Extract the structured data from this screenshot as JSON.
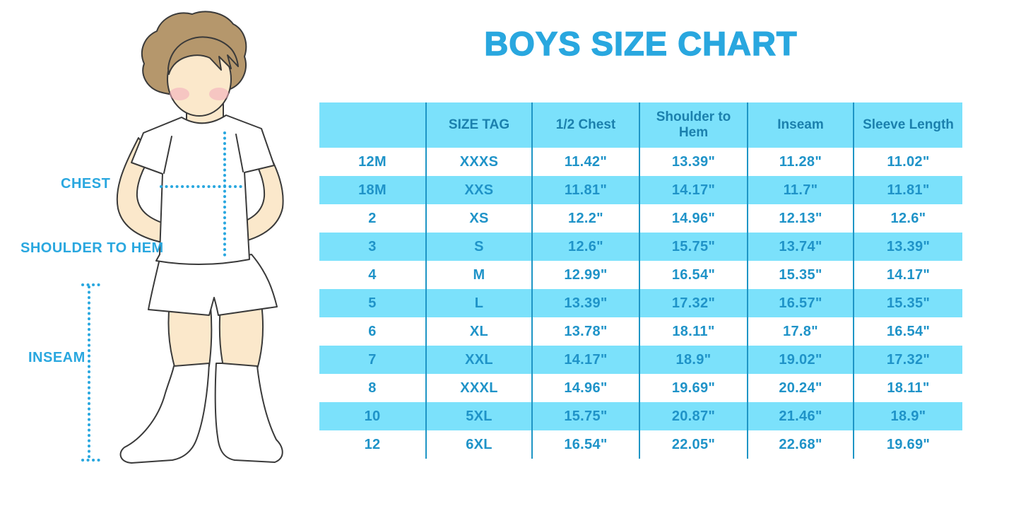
{
  "page_title": "BOYS SIZE CHART",
  "figure": {
    "description": "boy wearing white t-shirt, shorts and knee socks with measurement guides",
    "labels": {
      "chest": "CHEST",
      "shoulder_to_hem": "SHOULDER TO HEM",
      "inseam": "INSEAM"
    }
  },
  "colors": {
    "accent": "#29A7DF",
    "table_fill": "#7BE1FB",
    "table_line": "#1E95C5",
    "header_text": "#1B80AD",
    "cell_text": "#1F93C8",
    "skin": "#FBE8CB",
    "hair": "#B5976C",
    "outline": "#3A3A3A",
    "blush": "#F2A9BC"
  },
  "chart_data": {
    "type": "table",
    "title": "BOYS SIZE CHART",
    "columns": [
      "",
      "SIZE TAG",
      "1/2 Chest",
      "Shoulder to Hem",
      "Inseam",
      "Sleeve Length"
    ],
    "rows": [
      [
        "12M",
        "XXXS",
        "11.42\"",
        "13.39\"",
        "11.28\"",
        "11.02\""
      ],
      [
        "18M",
        "XXS",
        "11.81\"",
        "14.17\"",
        "11.7\"",
        "11.81\""
      ],
      [
        "2",
        "XS",
        "12.2\"",
        "14.96\"",
        "12.13\"",
        "12.6\""
      ],
      [
        "3",
        "S",
        "12.6\"",
        "15.75\"",
        "13.74\"",
        "13.39\""
      ],
      [
        "4",
        "M",
        "12.99\"",
        "16.54\"",
        "15.35\"",
        "14.17\""
      ],
      [
        "5",
        "L",
        "13.39\"",
        "17.32\"",
        "16.57\"",
        "15.35\""
      ],
      [
        "6",
        "XL",
        "13.78\"",
        "18.11\"",
        "17.8\"",
        "16.54\""
      ],
      [
        "7",
        "XXL",
        "14.17\"",
        "18.9\"",
        "19.02\"",
        "17.32\""
      ],
      [
        "8",
        "XXXL",
        "14.96\"",
        "19.69\"",
        "20.24\"",
        "18.11\""
      ],
      [
        "10",
        "5XL",
        "15.75\"",
        "20.87\"",
        "21.46\"",
        "18.9\""
      ],
      [
        "12",
        "6XL",
        "16.54\"",
        "22.05\"",
        "22.68\"",
        "19.69\""
      ]
    ],
    "row_striping": "white/blue alternating starting white, header blue",
    "legend_position": "none",
    "grid": "vertical column separators only"
  }
}
